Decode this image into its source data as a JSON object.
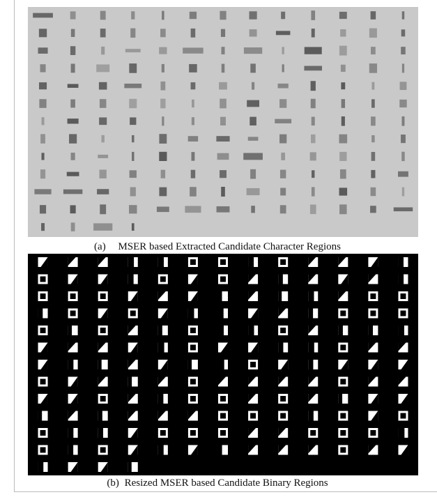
{
  "figure": {
    "captions": [
      {
        "label": "(a)",
        "text": "MSER based Extracted Candidate Character Regions"
      },
      {
        "label": "(b)",
        "text": "Resized MSER based Candidate Binary Regions"
      }
    ]
  }
}
